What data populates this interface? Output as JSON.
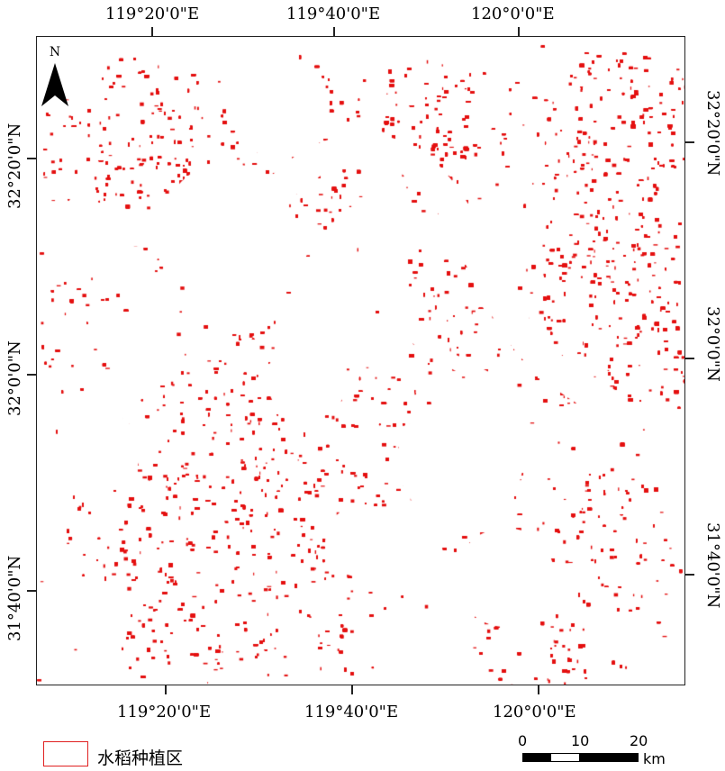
{
  "map": {
    "top_lon_labels": [
      "119°20'0\"E",
      "119°40'0\"E",
      "120°0'0\"E"
    ],
    "bottom_lon_labels": [
      "119°20'0\"E",
      "119°40'0\"E",
      "120°0'0\"E"
    ],
    "left_lat_labels": [
      "32°20'0\"N",
      "32°0'0\"N",
      "31°40'0\"N"
    ],
    "right_lat_labels": [
      "32°20'0\"N",
      "32°0'0\"N",
      "31°40'0\"N"
    ],
    "north_label": "N",
    "rice_color": "#e41010"
  },
  "legend": {
    "label": "水稻种植区"
  },
  "scale": {
    "ticks": [
      "0",
      "10",
      "20"
    ],
    "unit": "km"
  }
}
